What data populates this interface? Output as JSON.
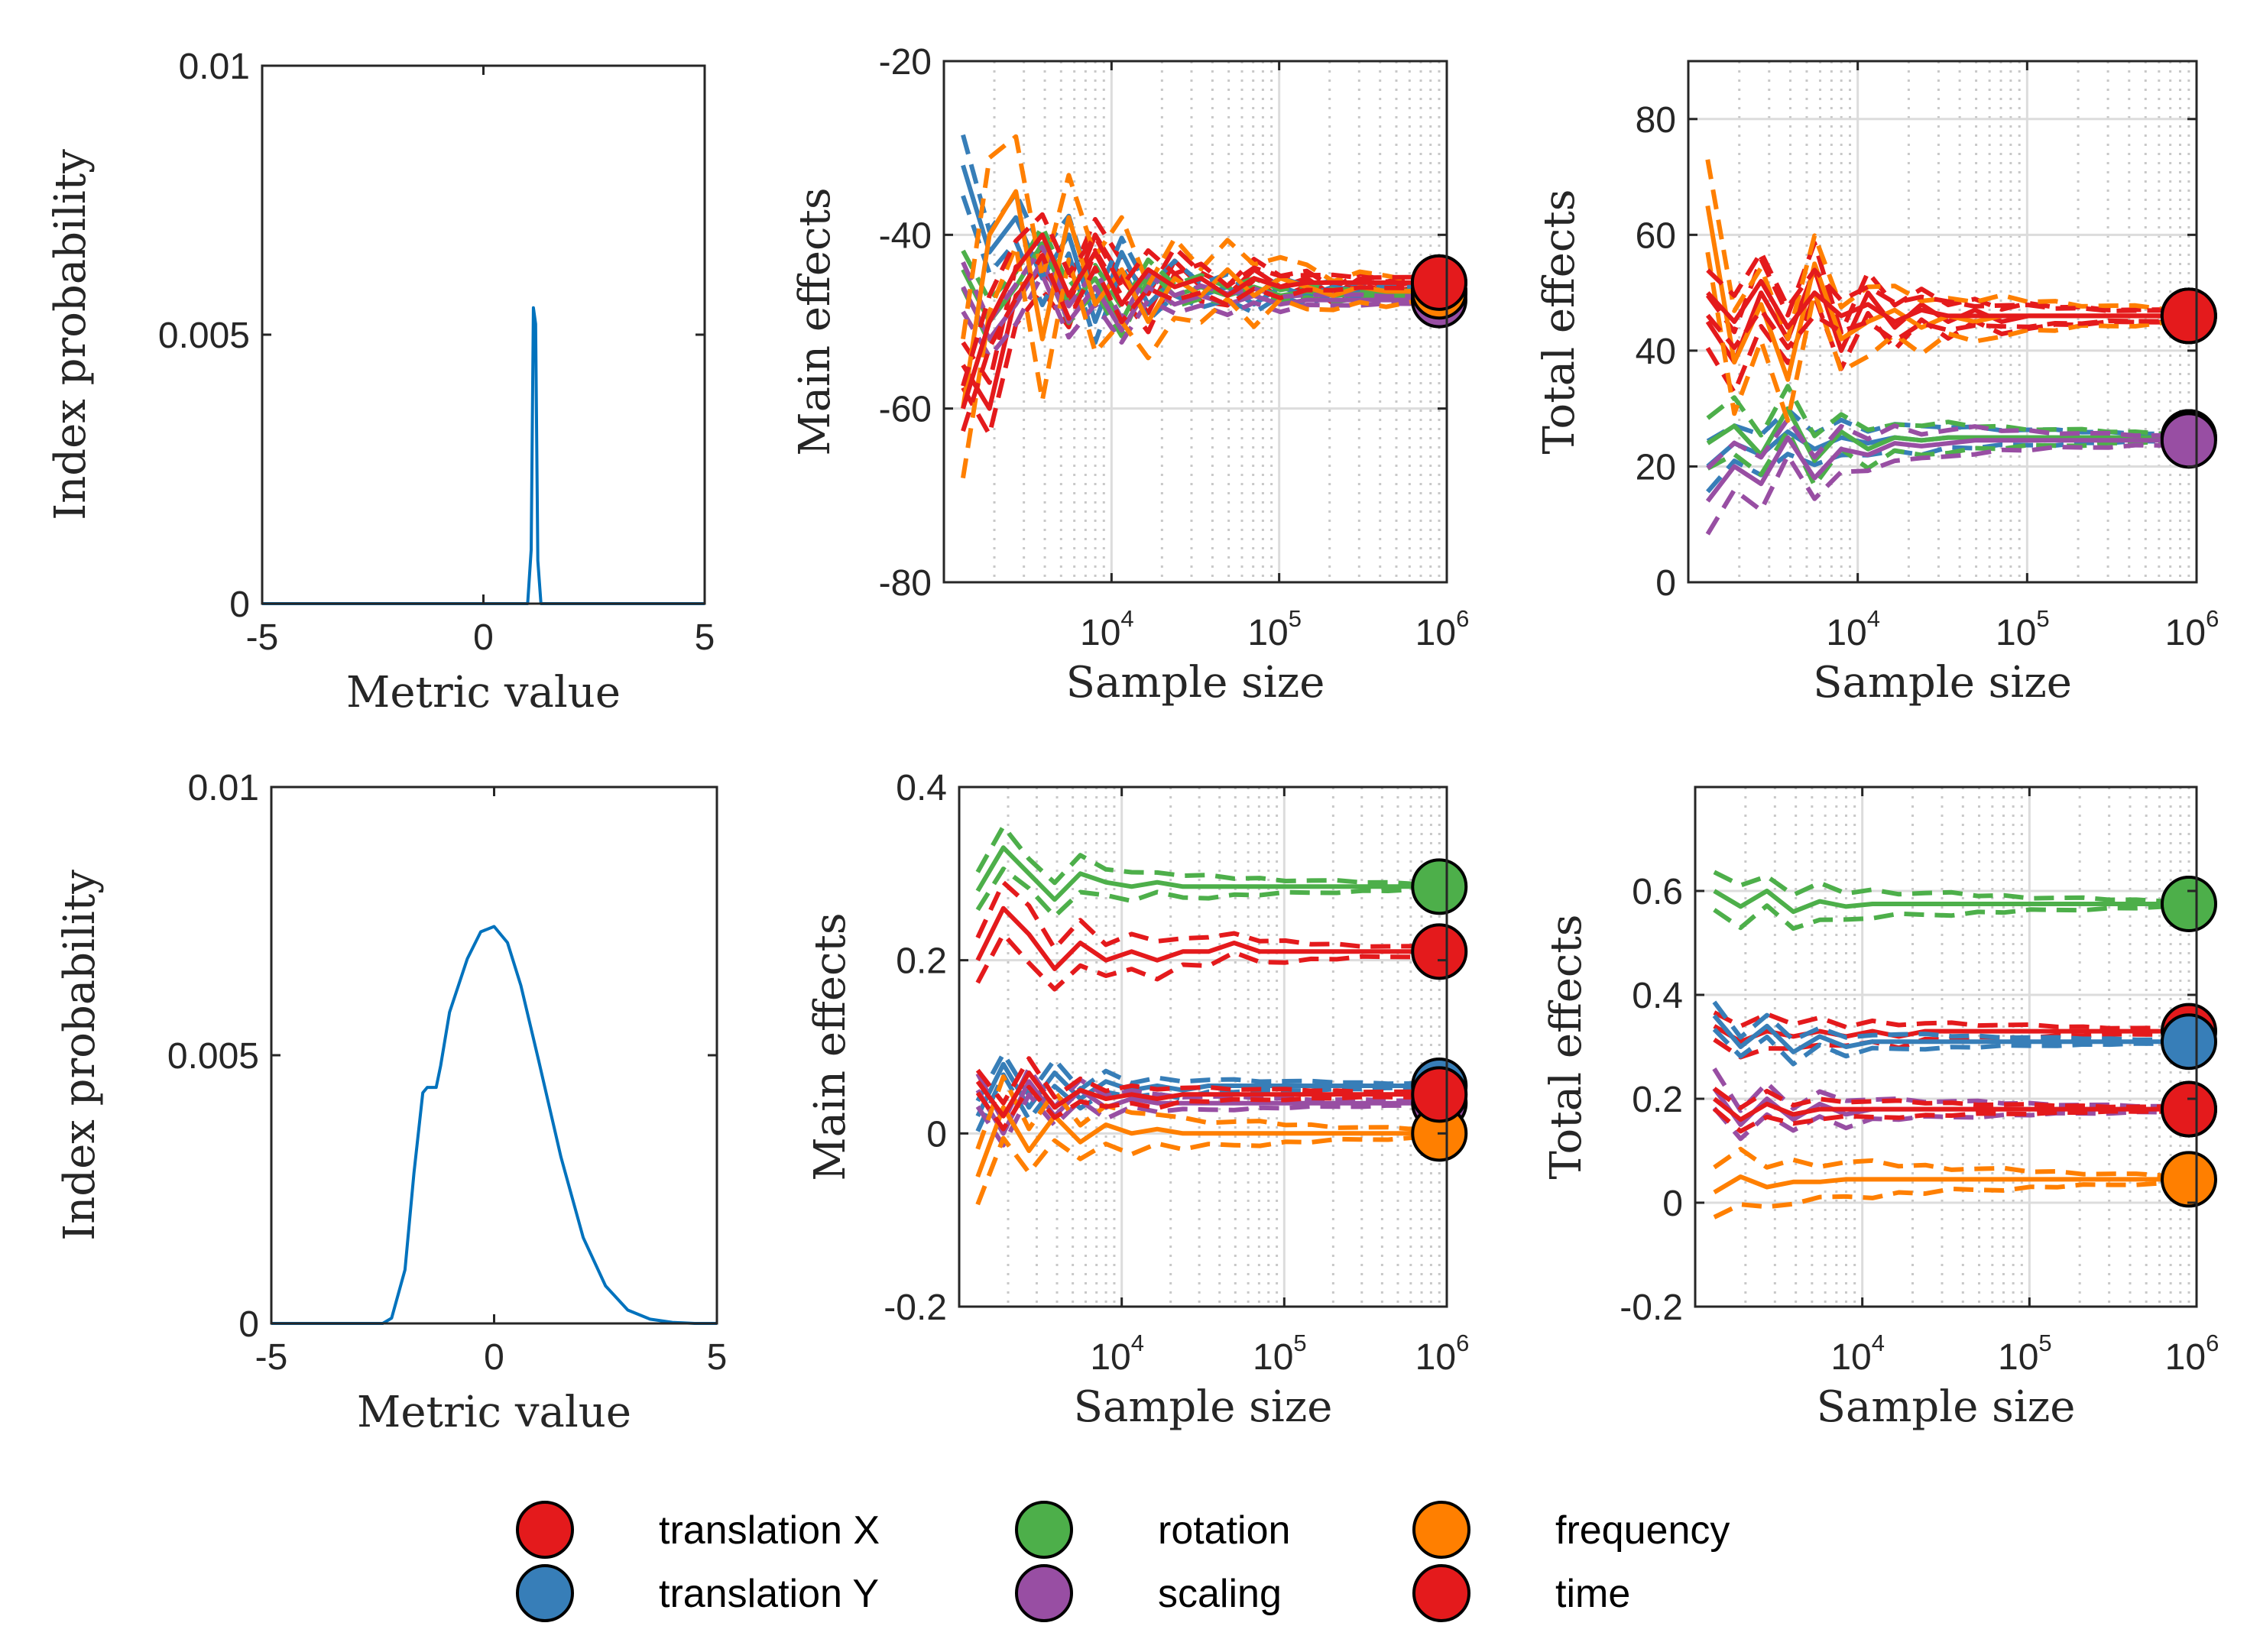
{
  "figure": {
    "legend": [
      {
        "label": "translation X",
        "color": "#E41A1C"
      },
      {
        "label": "translation Y",
        "color": "#377EB8"
      },
      {
        "label": "rotation",
        "color": "#4DAF4A"
      },
      {
        "label": "scaling",
        "color": "#984EA3"
      },
      {
        "label": "frequency",
        "color": "#FF7F00"
      },
      {
        "label": "time",
        "color": "#E41A1C"
      }
    ]
  },
  "chart_data": [
    {
      "id": "dist_top",
      "type": "line",
      "xlabel": "Metric value",
      "ylabel": "Index probability",
      "xlim": [
        -5,
        5
      ],
      "ylim": [
        0,
        0.01
      ],
      "xticks": [
        -5,
        0,
        5
      ],
      "yticks": [
        0,
        0.005,
        0.01
      ],
      "ytick_labels": [
        "0",
        "0.005",
        "0.01"
      ],
      "color": "#0072BD",
      "x": [
        -5,
        1.0,
        1.08,
        1.13,
        1.18,
        1.23,
        1.3,
        5
      ],
      "y": [
        0,
        0,
        0.001,
        0.0055,
        0.0052,
        0.0008,
        0,
        0
      ]
    },
    {
      "id": "main_top",
      "type": "line",
      "xscale": "log",
      "xlabel": "Sample size",
      "ylabel": "Main effects",
      "xlim": [
        1000,
        1000000
      ],
      "ylim": [
        -80,
        -20
      ],
      "xticks": [
        10000,
        100000,
        1000000
      ],
      "xtick_labels": [
        {
          "base": "10",
          "exp": "4"
        },
        {
          "base": "10",
          "exp": "5"
        },
        {
          "base": "10",
          "exp": "6"
        }
      ],
      "yticks": [
        -80,
        -60,
        -40,
        -20
      ],
      "ytick_labels": [
        "-80",
        "-60",
        "-40",
        "-20"
      ],
      "grid_x_major": [
        10000,
        100000
      ],
      "grid_y": [
        -60,
        -40
      ],
      "series": [
        {
          "name": "translation X",
          "color": "#E41A1C",
          "final": -45.5,
          "values": [
            -55,
            -60,
            -47,
            -44,
            -48,
            -40,
            -45,
            -49,
            -43,
            -46,
            -47,
            -44,
            -46,
            -45,
            -47,
            -45,
            -46,
            -45.5,
            -45.5
          ],
          "band": 4
        },
        {
          "name": "translation Y",
          "color": "#377EB8",
          "final": -46.5,
          "values": [
            -32,
            -42,
            -38,
            -45,
            -40,
            -50,
            -42,
            -48,
            -45,
            -47,
            -46,
            -48,
            -46,
            -47,
            -46,
            -46.5,
            -46.5,
            -46.5,
            -46.5
          ],
          "band": 4
        },
        {
          "name": "rotation",
          "color": "#4DAF4A",
          "final": -46.8,
          "values": [
            -44,
            -50,
            -46,
            -41,
            -48,
            -45,
            -50,
            -44,
            -47,
            -46,
            -47,
            -46,
            -47,
            -46.5,
            -47,
            -46.8,
            -46.8,
            -46.8,
            -46.8
          ],
          "band": 3
        },
        {
          "name": "scaling",
          "color": "#984EA3",
          "final": -47.5,
          "values": [
            -46,
            -52,
            -48,
            -43,
            -50,
            -46,
            -51,
            -46,
            -48,
            -47,
            -48,
            -47,
            -48,
            -47.5,
            -47.5,
            -47.5,
            -47.5,
            -47.5,
            -47.5
          ],
          "band": 3
        },
        {
          "name": "frequency",
          "color": "#FF7F00",
          "final": -46.5,
          "values": [
            -60,
            -40,
            -35,
            -52,
            -38,
            -48,
            -44,
            -50,
            -45,
            -47,
            -44,
            -47,
            -45,
            -46,
            -47,
            -46,
            -46.5,
            -46.5,
            -46.5
          ],
          "band": 10
        },
        {
          "name": "time",
          "color": "#E41A1C",
          "final": -45.5,
          "values": [
            -60,
            -50,
            -44,
            -40,
            -47,
            -42,
            -48,
            -44,
            -46,
            -45,
            -47,
            -45,
            -46,
            -45.5,
            -45.5,
            -45.5,
            -45.5,
            -45.5,
            -45.5
          ],
          "band": 4
        }
      ]
    },
    {
      "id": "total_top",
      "type": "line",
      "xscale": "log",
      "xlabel": "Sample size",
      "ylabel": "Total effects",
      "xlim": [
        1000,
        1000000
      ],
      "ylim": [
        0,
        90
      ],
      "xticks": [
        10000,
        100000,
        1000000
      ],
      "xtick_labels": [
        {
          "base": "10",
          "exp": "4"
        },
        {
          "base": "10",
          "exp": "5"
        },
        {
          "base": "10",
          "exp": "6"
        }
      ],
      "yticks": [
        0,
        20,
        40,
        60,
        80
      ],
      "ytick_labels": [
        "0",
        "20",
        "40",
        "60",
        "80"
      ],
      "grid_x_major": [
        10000,
        100000
      ],
      "grid_y": [
        20,
        40,
        60,
        80
      ],
      "series": [
        {
          "name": "translation X",
          "color": "#E41A1C",
          "final": 46,
          "values": [
            45,
            38,
            50,
            42,
            54,
            40,
            50,
            44,
            48,
            45,
            47,
            45,
            46,
            46,
            46,
            46,
            46,
            46,
            46
          ],
          "band": 7
        },
        {
          "name": "translation Y",
          "color": "#377EB8",
          "final": 25,
          "values": [
            20,
            24,
            22,
            26,
            23,
            25,
            24,
            25,
            24.5,
            25,
            25,
            25,
            25,
            25,
            25,
            25,
            25,
            25,
            25
          ],
          "band": 5
        },
        {
          "name": "rotation",
          "color": "#4DAF4A",
          "final": 25,
          "values": [
            24,
            27,
            22,
            30,
            21,
            26,
            23,
            25,
            24.5,
            25,
            25,
            25,
            25,
            25,
            25,
            25,
            25,
            25,
            25
          ],
          "band": 6
        },
        {
          "name": "scaling",
          "color": "#984EA3",
          "final": 24.5,
          "values": [
            14,
            20,
            17,
            25,
            18,
            23,
            22,
            24,
            23.5,
            24,
            24.5,
            24.5,
            24.5,
            24.5,
            24.5,
            24.5,
            24.5,
            24.5,
            24.5
          ],
          "band": 6
        },
        {
          "name": "frequency",
          "color": "#FF7F00",
          "final": 46,
          "values": [
            65,
            38,
            48,
            35,
            55,
            42,
            45,
            47,
            44,
            46,
            45,
            46,
            46,
            46,
            46,
            46,
            46,
            46,
            46
          ],
          "band": 10
        },
        {
          "name": "time",
          "color": "#E41A1C",
          "final": 46,
          "values": [
            50,
            45,
            52,
            44,
            50,
            46,
            48,
            45,
            47,
            46,
            46,
            46,
            46,
            46,
            46,
            46,
            46,
            46,
            46
          ],
          "band": 6
        }
      ]
    },
    {
      "id": "dist_bottom",
      "type": "line",
      "xlabel": "Metric value",
      "ylabel": "Index probability",
      "xlim": [
        -5,
        5
      ],
      "ylim": [
        0,
        0.01
      ],
      "xticks": [
        -5,
        0,
        5
      ],
      "yticks": [
        0,
        0.005,
        0.01
      ],
      "ytick_labels": [
        "0",
        "0.005",
        "0.01"
      ],
      "color": "#0072BD",
      "x": [
        -5,
        -2.5,
        -2.3,
        -2.0,
        -1.8,
        -1.6,
        -1.5,
        -1.4,
        -1.3,
        -1.2,
        -1.0,
        -0.6,
        -0.3,
        0,
        0.3,
        0.6,
        1.0,
        1.5,
        2.0,
        2.5,
        3.0,
        3.5,
        4.0,
        4.5,
        5
      ],
      "y": [
        0,
        0,
        0.0001,
        0.001,
        0.0028,
        0.0043,
        0.0044,
        0.0044,
        0.0044,
        0.0048,
        0.0058,
        0.0068,
        0.0073,
        0.0074,
        0.0071,
        0.0063,
        0.0049,
        0.0031,
        0.0016,
        0.0007,
        0.00025,
        8e-05,
        2e-05,
        0,
        0
      ]
    },
    {
      "id": "main_bottom",
      "type": "line",
      "xscale": "log",
      "xlabel": "Sample size",
      "ylabel": "Main effects",
      "xlim": [
        1000,
        1000000
      ],
      "ylim": [
        -0.2,
        0.4
      ],
      "xticks": [
        10000,
        100000,
        1000000
      ],
      "xtick_labels": [
        {
          "base": "10",
          "exp": "4"
        },
        {
          "base": "10",
          "exp": "5"
        },
        {
          "base": "10",
          "exp": "6"
        }
      ],
      "yticks": [
        -0.2,
        0,
        0.2,
        0.4
      ],
      "ytick_labels": [
        "-0.2",
        "0",
        "0.2",
        "0.4"
      ],
      "grid_x_major": [
        10000,
        100000
      ],
      "grid_y": [
        0,
        0.2
      ],
      "series": [
        {
          "name": "translation X",
          "color": "#E41A1C",
          "final": 0.21,
          "values": [
            0.2,
            0.26,
            0.23,
            0.19,
            0.22,
            0.2,
            0.21,
            0.2,
            0.21,
            0.21,
            0.22,
            0.21,
            0.21,
            0.21,
            0.21,
            0.21,
            0.21,
            0.21,
            0.21
          ],
          "band": 0.04
        },
        {
          "name": "translation Y",
          "color": "#377EB8",
          "final": 0.055,
          "values": [
            0.02,
            0.08,
            0.03,
            0.07,
            0.04,
            0.06,
            0.05,
            0.055,
            0.05,
            0.055,
            0.055,
            0.055,
            0.055,
            0.055,
            0.055,
            0.055,
            0.055,
            0.055,
            0.055
          ],
          "band": 0.02
        },
        {
          "name": "rotation",
          "color": "#4DAF4A",
          "final": 0.285,
          "values": [
            0.28,
            0.33,
            0.3,
            0.27,
            0.3,
            0.29,
            0.285,
            0.29,
            0.285,
            0.285,
            0.285,
            0.285,
            0.285,
            0.285,
            0.285,
            0.285,
            0.285,
            0.285,
            0.285
          ],
          "band": 0.03
        },
        {
          "name": "scaling",
          "color": "#984EA3",
          "final": 0.035,
          "values": [
            0.05,
            0.0,
            0.06,
            0.02,
            0.05,
            0.03,
            0.04,
            0.035,
            0.035,
            0.035,
            0.035,
            0.035,
            0.035,
            0.035,
            0.035,
            0.035,
            0.035,
            0.035,
            0.035
          ],
          "band": 0.02
        },
        {
          "name": "frequency",
          "color": "#FF7F00",
          "final": 0.0,
          "values": [
            -0.05,
            0.03,
            -0.02,
            0.02,
            -0.01,
            0.01,
            0.0,
            0.005,
            0.0,
            0.0,
            0.0,
            0.0,
            0.0,
            0.0,
            0.0,
            0.0,
            0.0,
            0.0,
            0.0
          ],
          "band": 0.04
        },
        {
          "name": "time",
          "color": "#E41A1C",
          "final": 0.045,
          "values": [
            0.06,
            0.02,
            0.07,
            0.03,
            0.05,
            0.04,
            0.045,
            0.04,
            0.045,
            0.045,
            0.045,
            0.045,
            0.045,
            0.045,
            0.045,
            0.045,
            0.045,
            0.045,
            0.045
          ],
          "band": 0.02
        }
      ]
    },
    {
      "id": "total_bottom",
      "type": "line",
      "xscale": "log",
      "xlabel": "Sample size",
      "ylabel": "Total effects",
      "xlim": [
        1000,
        1000000
      ],
      "ylim": [
        -0.2,
        0.8
      ],
      "xticks": [
        10000,
        100000,
        1000000
      ],
      "xtick_labels": [
        {
          "base": "10",
          "exp": "4"
        },
        {
          "base": "10",
          "exp": "5"
        },
        {
          "base": "10",
          "exp": "6"
        }
      ],
      "yticks": [
        -0.2,
        0,
        0.2,
        0.4,
        0.6
      ],
      "ytick_labels": [
        "-0.2",
        "0",
        "0.2",
        "0.4",
        "0.6"
      ],
      "grid_x_major": [
        10000,
        100000
      ],
      "grid_y": [
        0,
        0.2,
        0.4,
        0.6
      ],
      "series": [
        {
          "name": "translation X",
          "color": "#E41A1C",
          "final": 0.33,
          "values": [
            0.34,
            0.31,
            0.33,
            0.32,
            0.33,
            0.32,
            0.33,
            0.32,
            0.33,
            0.33,
            0.33,
            0.33,
            0.33,
            0.33,
            0.33,
            0.33,
            0.33,
            0.33,
            0.33
          ],
          "band": 0.04
        },
        {
          "name": "translation Y",
          "color": "#377EB8",
          "final": 0.31,
          "values": [
            0.36,
            0.3,
            0.34,
            0.29,
            0.32,
            0.3,
            0.31,
            0.31,
            0.31,
            0.31,
            0.31,
            0.31,
            0.31,
            0.31,
            0.31,
            0.31,
            0.31,
            0.31,
            0.31
          ],
          "band": 0.03
        },
        {
          "name": "rotation",
          "color": "#4DAF4A",
          "final": 0.575,
          "values": [
            0.6,
            0.57,
            0.6,
            0.56,
            0.58,
            0.57,
            0.575,
            0.575,
            0.575,
            0.575,
            0.575,
            0.575,
            0.575,
            0.575,
            0.575,
            0.575,
            0.575,
            0.575,
            0.575
          ],
          "band": 0.05
        },
        {
          "name": "scaling",
          "color": "#984EA3",
          "final": 0.18,
          "values": [
            0.22,
            0.15,
            0.2,
            0.16,
            0.19,
            0.17,
            0.18,
            0.18,
            0.18,
            0.18,
            0.18,
            0.18,
            0.18,
            0.18,
            0.18,
            0.18,
            0.18,
            0.18,
            0.18
          ],
          "band": 0.04
        },
        {
          "name": "frequency",
          "color": "#FF7F00",
          "final": 0.045,
          "values": [
            0.02,
            0.05,
            0.03,
            0.04,
            0.04,
            0.045,
            0.045,
            0.045,
            0.045,
            0.045,
            0.045,
            0.045,
            0.045,
            0.045,
            0.045,
            0.045,
            0.045,
            0.045,
            0.045
          ],
          "band": 0.06
        },
        {
          "name": "time",
          "color": "#E41A1C",
          "final": 0.18,
          "values": [
            0.2,
            0.16,
            0.19,
            0.17,
            0.18,
            0.18,
            0.18,
            0.18,
            0.18,
            0.18,
            0.18,
            0.18,
            0.18,
            0.18,
            0.18,
            0.18,
            0.18,
            0.18,
            0.18
          ],
          "band": 0.03
        }
      ]
    }
  ]
}
